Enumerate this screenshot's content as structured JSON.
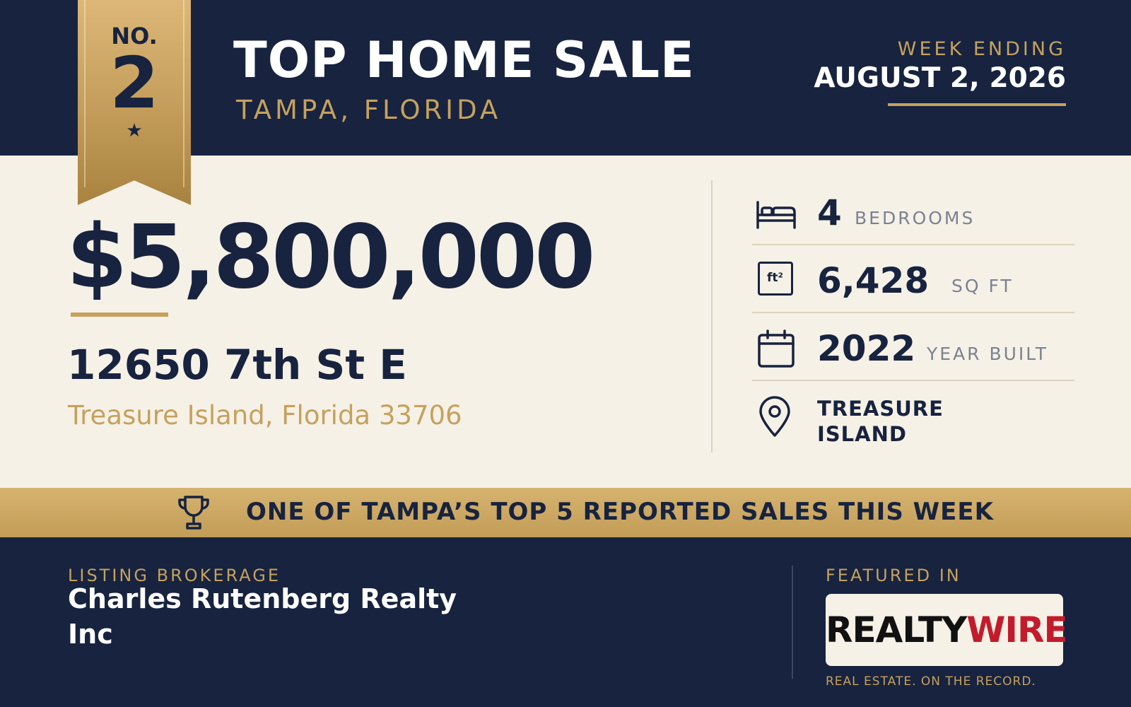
{
  "header": {
    "title": "TOP HOME SALE",
    "subtitle": "TAMPA, FLORIDA",
    "week_label": "WEEK ENDING",
    "week_date": "AUGUST 2, 2026"
  },
  "ribbon": {
    "no_label": "NO.",
    "rank": "2",
    "star": "★"
  },
  "listing": {
    "price": "$5,800,000",
    "street": "12650 7th St E",
    "city_state_zip": "Treasure Island, Florida 33706"
  },
  "stats": [
    {
      "icon": "bed-icon",
      "value": "4",
      "label": "BEDROOMS"
    },
    {
      "icon": "square-feet-icon",
      "icon_text": "ft²",
      "value": "6,428",
      "label": "SQ FT"
    },
    {
      "icon": "calendar-icon",
      "value": "2022",
      "label": "YEAR BUILT"
    },
    {
      "icon": "location-pin-icon",
      "value": "TREASURE ISLAND"
    }
  ],
  "banner": {
    "icon": "trophy-icon",
    "text": "ONE OF TAMPA’S TOP 5 REPORTED SALES THIS WEEK"
  },
  "footer": {
    "brokerage_label": "LISTING BROKERAGE",
    "brokerage_name": "Charles Rutenberg Realty Inc",
    "featured_label": "FEATURED IN",
    "logo_part1": "REALTY",
    "logo_part2": "WIRE",
    "tagline": "REAL ESTATE. ON THE RECORD."
  },
  "colors": {
    "navy": "#17233f",
    "gold": "#c6a15e",
    "cream": "#f6f1e6",
    "logo_red": "#c21c2c"
  }
}
